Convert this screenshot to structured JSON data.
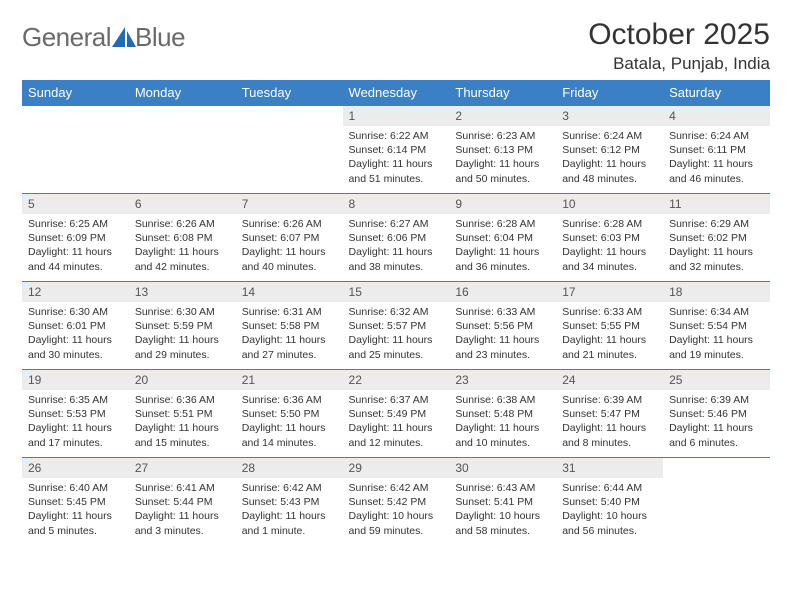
{
  "logo": {
    "textA": "General",
    "textB": "Blue"
  },
  "title": "October 2025",
  "location": "Batala, Punjab, India",
  "colors": {
    "header_bg": "#3b7fc4",
    "daynum_bg": "#ececec",
    "logo_accent": "#1f6bb8",
    "text": "#333333"
  },
  "dayHeaders": [
    "Sunday",
    "Monday",
    "Tuesday",
    "Wednesday",
    "Thursday",
    "Friday",
    "Saturday"
  ],
  "weeks": [
    [
      {
        "n": "",
        "sr": "",
        "ss": "",
        "dl": ""
      },
      {
        "n": "",
        "sr": "",
        "ss": "",
        "dl": ""
      },
      {
        "n": "",
        "sr": "",
        "ss": "",
        "dl": ""
      },
      {
        "n": "1",
        "sr": "Sunrise: 6:22 AM",
        "ss": "Sunset: 6:14 PM",
        "dl": "Daylight: 11 hours and 51 minutes."
      },
      {
        "n": "2",
        "sr": "Sunrise: 6:23 AM",
        "ss": "Sunset: 6:13 PM",
        "dl": "Daylight: 11 hours and 50 minutes."
      },
      {
        "n": "3",
        "sr": "Sunrise: 6:24 AM",
        "ss": "Sunset: 6:12 PM",
        "dl": "Daylight: 11 hours and 48 minutes."
      },
      {
        "n": "4",
        "sr": "Sunrise: 6:24 AM",
        "ss": "Sunset: 6:11 PM",
        "dl": "Daylight: 11 hours and 46 minutes."
      }
    ],
    [
      {
        "n": "5",
        "sr": "Sunrise: 6:25 AM",
        "ss": "Sunset: 6:09 PM",
        "dl": "Daylight: 11 hours and 44 minutes."
      },
      {
        "n": "6",
        "sr": "Sunrise: 6:26 AM",
        "ss": "Sunset: 6:08 PM",
        "dl": "Daylight: 11 hours and 42 minutes."
      },
      {
        "n": "7",
        "sr": "Sunrise: 6:26 AM",
        "ss": "Sunset: 6:07 PM",
        "dl": "Daylight: 11 hours and 40 minutes."
      },
      {
        "n": "8",
        "sr": "Sunrise: 6:27 AM",
        "ss": "Sunset: 6:06 PM",
        "dl": "Daylight: 11 hours and 38 minutes."
      },
      {
        "n": "9",
        "sr": "Sunrise: 6:28 AM",
        "ss": "Sunset: 6:04 PM",
        "dl": "Daylight: 11 hours and 36 minutes."
      },
      {
        "n": "10",
        "sr": "Sunrise: 6:28 AM",
        "ss": "Sunset: 6:03 PM",
        "dl": "Daylight: 11 hours and 34 minutes."
      },
      {
        "n": "11",
        "sr": "Sunrise: 6:29 AM",
        "ss": "Sunset: 6:02 PM",
        "dl": "Daylight: 11 hours and 32 minutes."
      }
    ],
    [
      {
        "n": "12",
        "sr": "Sunrise: 6:30 AM",
        "ss": "Sunset: 6:01 PM",
        "dl": "Daylight: 11 hours and 30 minutes."
      },
      {
        "n": "13",
        "sr": "Sunrise: 6:30 AM",
        "ss": "Sunset: 5:59 PM",
        "dl": "Daylight: 11 hours and 29 minutes."
      },
      {
        "n": "14",
        "sr": "Sunrise: 6:31 AM",
        "ss": "Sunset: 5:58 PM",
        "dl": "Daylight: 11 hours and 27 minutes."
      },
      {
        "n": "15",
        "sr": "Sunrise: 6:32 AM",
        "ss": "Sunset: 5:57 PM",
        "dl": "Daylight: 11 hours and 25 minutes."
      },
      {
        "n": "16",
        "sr": "Sunrise: 6:33 AM",
        "ss": "Sunset: 5:56 PM",
        "dl": "Daylight: 11 hours and 23 minutes."
      },
      {
        "n": "17",
        "sr": "Sunrise: 6:33 AM",
        "ss": "Sunset: 5:55 PM",
        "dl": "Daylight: 11 hours and 21 minutes."
      },
      {
        "n": "18",
        "sr": "Sunrise: 6:34 AM",
        "ss": "Sunset: 5:54 PM",
        "dl": "Daylight: 11 hours and 19 minutes."
      }
    ],
    [
      {
        "n": "19",
        "sr": "Sunrise: 6:35 AM",
        "ss": "Sunset: 5:53 PM",
        "dl": "Daylight: 11 hours and 17 minutes."
      },
      {
        "n": "20",
        "sr": "Sunrise: 6:36 AM",
        "ss": "Sunset: 5:51 PM",
        "dl": "Daylight: 11 hours and 15 minutes."
      },
      {
        "n": "21",
        "sr": "Sunrise: 6:36 AM",
        "ss": "Sunset: 5:50 PM",
        "dl": "Daylight: 11 hours and 14 minutes."
      },
      {
        "n": "22",
        "sr": "Sunrise: 6:37 AM",
        "ss": "Sunset: 5:49 PM",
        "dl": "Daylight: 11 hours and 12 minutes."
      },
      {
        "n": "23",
        "sr": "Sunrise: 6:38 AM",
        "ss": "Sunset: 5:48 PM",
        "dl": "Daylight: 11 hours and 10 minutes."
      },
      {
        "n": "24",
        "sr": "Sunrise: 6:39 AM",
        "ss": "Sunset: 5:47 PM",
        "dl": "Daylight: 11 hours and 8 minutes."
      },
      {
        "n": "25",
        "sr": "Sunrise: 6:39 AM",
        "ss": "Sunset: 5:46 PM",
        "dl": "Daylight: 11 hours and 6 minutes."
      }
    ],
    [
      {
        "n": "26",
        "sr": "Sunrise: 6:40 AM",
        "ss": "Sunset: 5:45 PM",
        "dl": "Daylight: 11 hours and 5 minutes."
      },
      {
        "n": "27",
        "sr": "Sunrise: 6:41 AM",
        "ss": "Sunset: 5:44 PM",
        "dl": "Daylight: 11 hours and 3 minutes."
      },
      {
        "n": "28",
        "sr": "Sunrise: 6:42 AM",
        "ss": "Sunset: 5:43 PM",
        "dl": "Daylight: 11 hours and 1 minute."
      },
      {
        "n": "29",
        "sr": "Sunrise: 6:42 AM",
        "ss": "Sunset: 5:42 PM",
        "dl": "Daylight: 10 hours and 59 minutes."
      },
      {
        "n": "30",
        "sr": "Sunrise: 6:43 AM",
        "ss": "Sunset: 5:41 PM",
        "dl": "Daylight: 10 hours and 58 minutes."
      },
      {
        "n": "31",
        "sr": "Sunrise: 6:44 AM",
        "ss": "Sunset: 5:40 PM",
        "dl": "Daylight: 10 hours and 56 minutes."
      },
      {
        "n": "",
        "sr": "",
        "ss": "",
        "dl": ""
      }
    ]
  ]
}
